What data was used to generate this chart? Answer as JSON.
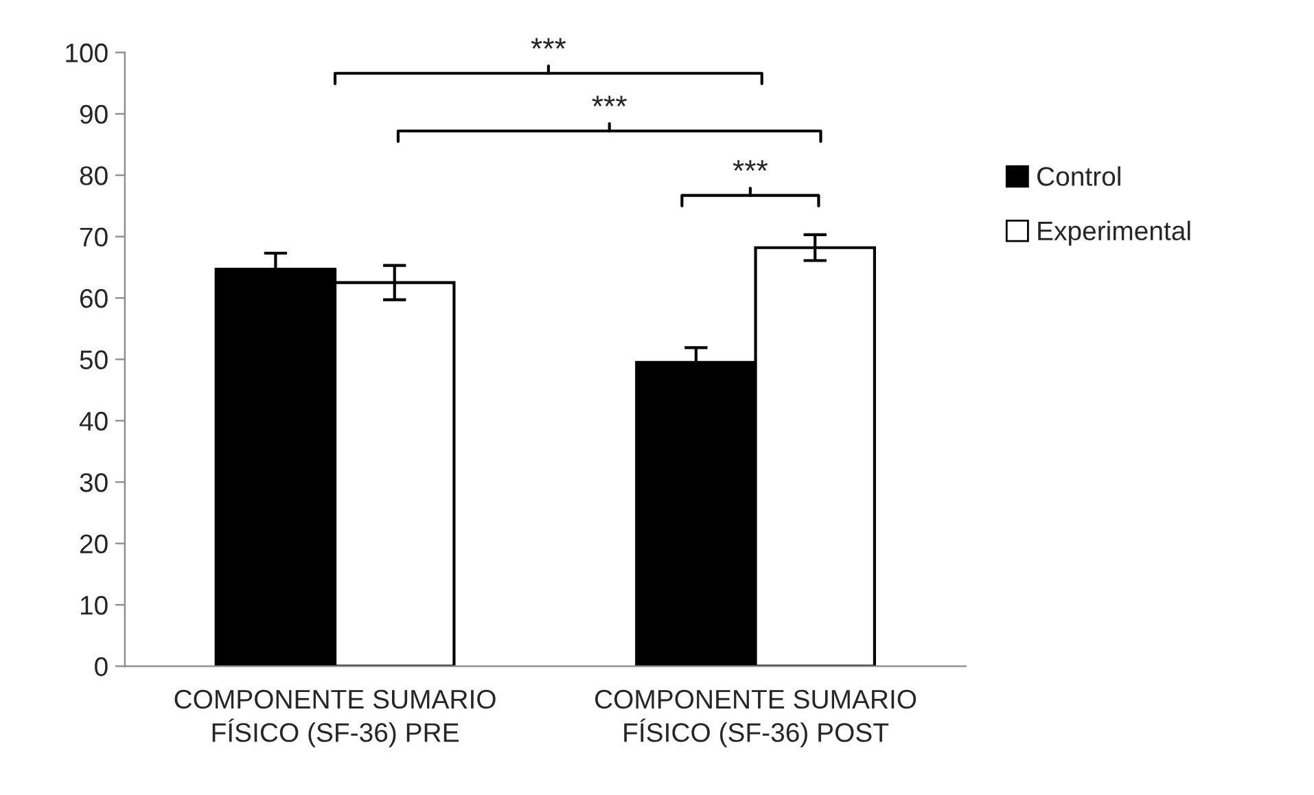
{
  "chart_data": {
    "type": "bar",
    "categories": [
      "COMPONENTE SUMARIO\nFÍSICO (SF-36) PRE",
      "COMPONENTE SUMARIO\nFÍSICO (SF-36) POST"
    ],
    "series": [
      {
        "name": "Control",
        "color": "#000000",
        "values": [
          64.7,
          49.5
        ],
        "errors": [
          2.6,
          2.4
        ]
      },
      {
        "name": "Experimental",
        "color": "#ffffff",
        "values": [
          62.5,
          68.2
        ],
        "errors": [
          2.8,
          2.1
        ]
      }
    ],
    "ylim": [
      0,
      100
    ],
    "yticks": [
      0,
      10,
      20,
      30,
      40,
      50,
      60,
      70,
      80,
      90,
      100
    ],
    "grid": false,
    "legend": "right",
    "annotations": [
      "***",
      "***",
      "***"
    ]
  }
}
